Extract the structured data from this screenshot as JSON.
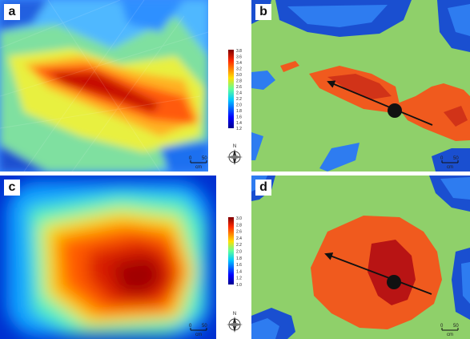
{
  "panels": [
    {
      "label": "a",
      "scale_bar": {
        "start": "0",
        "end": "50",
        "unit": "cm"
      }
    },
    {
      "label": "b",
      "scale_bar": {
        "start": "0",
        "end": "50",
        "unit": "cm"
      }
    },
    {
      "label": "c",
      "scale_bar": {
        "start": "0",
        "end": "50",
        "unit": "cm"
      }
    },
    {
      "label": "d",
      "scale_bar": {
        "start": "0",
        "end": "50",
        "unit": "cm"
      }
    }
  ],
  "legend_a": {
    "ticks": [
      "3.8",
      "3.6",
      "3.4",
      "3.2",
      "3.0",
      "2.8",
      "2.6",
      "2.4",
      "2.2",
      "2.0",
      "1.8",
      "1.6",
      "1.4",
      "1.2"
    ]
  },
  "legend_c": {
    "ticks": [
      "3.0",
      "2.8",
      "2.6",
      "2.4",
      "2.2",
      "2.0",
      "1.8",
      "1.6",
      "1.4",
      "1.2",
      "1.0"
    ]
  },
  "north_arrow": {
    "letter": "N"
  },
  "colors": {
    "class_dark_blue": "#1a4fd0",
    "class_light_blue": "#2e7cf0",
    "class_green": "#8fd06a",
    "class_orange": "#f05a1e",
    "class_dark_red": "#b81414",
    "arrow": "#111111"
  },
  "icons": [
    "north-arrow-icon",
    "direction-arrow-icon"
  ]
}
